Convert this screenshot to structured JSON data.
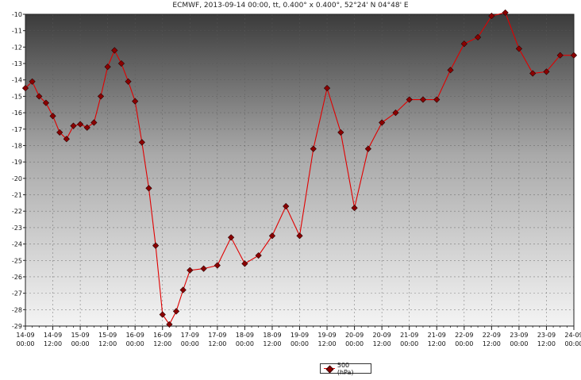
{
  "chart_data": {
    "type": "line",
    "title": "ECMWF, 2013-09-14 00:00, tt, 0.400° x 0.400°, 52°24' N  04°48' E",
    "xlabel": "",
    "ylabel": "",
    "ylim": [
      -29,
      -10
    ],
    "y_ticks": [
      -10,
      -11,
      -12,
      -13,
      -14,
      -15,
      -16,
      -17,
      -18,
      -19,
      -20,
      -21,
      -22,
      -23,
      -24,
      -25,
      -26,
      -27,
      -28,
      -29
    ],
    "x_range_hours": [
      0,
      240
    ],
    "x_ticks": [
      {
        "hour": 0,
        "day": "14-09",
        "time": "00:00"
      },
      {
        "hour": 12,
        "day": "14-09",
        "time": "12:00"
      },
      {
        "hour": 24,
        "day": "15-09",
        "time": "00:00"
      },
      {
        "hour": 36,
        "day": "15-09",
        "time": "12:00"
      },
      {
        "hour": 48,
        "day": "16-09",
        "time": "00:00"
      },
      {
        "hour": 60,
        "day": "16-09",
        "time": "12:00"
      },
      {
        "hour": 72,
        "day": "17-09",
        "time": "00:00"
      },
      {
        "hour": 84,
        "day": "17-09",
        "time": "12:00"
      },
      {
        "hour": 96,
        "day": "18-09",
        "time": "00:00"
      },
      {
        "hour": 108,
        "day": "18-09",
        "time": "12:00"
      },
      {
        "hour": 120,
        "day": "19-09",
        "time": "00:00"
      },
      {
        "hour": 132,
        "day": "19-09",
        "time": "12:00"
      },
      {
        "hour": 144,
        "day": "20-09",
        "time": "00:00"
      },
      {
        "hour": 156,
        "day": "20-09",
        "time": "12:00"
      },
      {
        "hour": 168,
        "day": "21-09",
        "time": "00:00"
      },
      {
        "hour": 180,
        "day": "21-09",
        "time": "12:00"
      },
      {
        "hour": 192,
        "day": "22-09",
        "time": "00:00"
      },
      {
        "hour": 204,
        "day": "22-09",
        "time": "12:00"
      },
      {
        "hour": 216,
        "day": "23-09",
        "time": "00:00"
      },
      {
        "hour": 228,
        "day": "23-09",
        "time": "12:00"
      },
      {
        "hour": 240,
        "day": "24-09",
        "time": "00:00"
      }
    ],
    "grid": true,
    "legend_position": "bottom-center",
    "series": [
      {
        "name": "500 (hPa)",
        "line_color": "#e00000",
        "marker_color": "#8b0000",
        "x_hours": [
          0,
          3,
          6,
          9,
          12,
          15,
          18,
          21,
          24,
          27,
          30,
          33,
          36,
          39,
          42,
          45,
          48,
          51,
          54,
          57,
          60,
          63,
          66,
          69,
          72,
          78,
          84,
          90,
          96,
          102,
          108,
          114,
          120,
          126,
          132,
          138,
          144,
          150,
          156,
          162,
          168,
          174,
          180,
          186,
          192,
          198,
          204,
          210,
          216,
          222,
          228,
          234,
          240
        ],
        "values": [
          -14.5,
          -14.1,
          -15.0,
          -15.4,
          -16.2,
          -17.2,
          -17.6,
          -16.8,
          -16.7,
          -16.9,
          -16.6,
          -15.0,
          -13.2,
          -12.2,
          -13.0,
          -14.1,
          -15.3,
          -17.8,
          -20.6,
          -24.1,
          -28.3,
          -28.9,
          -28.1,
          -26.8,
          -25.6,
          -25.5,
          -25.3,
          -23.6,
          -25.2,
          -24.7,
          -23.5,
          -21.7,
          -23.5,
          -18.2,
          -14.5,
          -17.2,
          -21.8,
          -18.2,
          -16.6,
          -16.0,
          -15.2,
          -15.2,
          -15.2,
          -13.4,
          -11.8,
          -11.4,
          -10.1,
          -9.9,
          -12.1,
          -13.6,
          -13.5,
          -12.5,
          -12.5
        ]
      }
    ]
  }
}
